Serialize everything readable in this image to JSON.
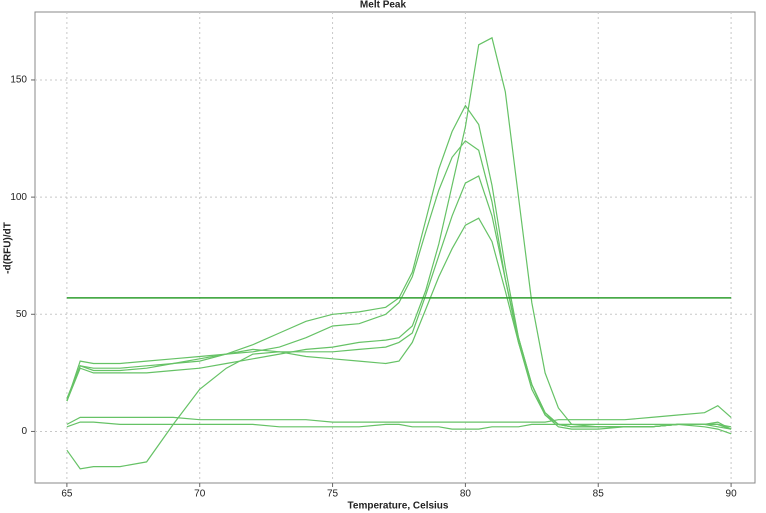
{
  "chart_data": {
    "type": "line",
    "title": "Melt Peak",
    "x_label": "Temperature, Celsius",
    "y_label": "-d(RFU)/dT",
    "x": [
      65,
      65.5,
      66,
      67,
      68,
      69,
      70,
      71,
      72,
      73,
      74,
      75,
      76,
      77,
      77.5,
      78,
      78.5,
      79,
      79.5,
      80,
      80.5,
      81,
      81.5,
      82,
      82.5,
      83,
      83.5,
      84,
      85,
      86,
      87,
      88,
      89,
      89.5,
      90
    ],
    "series": [
      {
        "color": "#66c266",
        "values": [
          13,
          27,
          25,
          25,
          25,
          26,
          27,
          29,
          31,
          33,
          35,
          36,
          38,
          39,
          40,
          45,
          60,
          80,
          105,
          130,
          165,
          168,
          145,
          100,
          55,
          25,
          10,
          3,
          2,
          2,
          2,
          3,
          3,
          2,
          1
        ]
      },
      {
        "color": "#66c266",
        "values": [
          14,
          28,
          26,
          26,
          27,
          29,
          31,
          33,
          37,
          42,
          47,
          50,
          51,
          53,
          57,
          68,
          90,
          112,
          128,
          139,
          131,
          105,
          70,
          40,
          20,
          8,
          3,
          2,
          2,
          2,
          2,
          3,
          3,
          3,
          2
        ]
      },
      {
        "color": "#66c266",
        "values": [
          13,
          30,
          29,
          29,
          30,
          31,
          32,
          33,
          34,
          36,
          40,
          45,
          46,
          50,
          55,
          66,
          85,
          103,
          117,
          124,
          120,
          98,
          65,
          38,
          18,
          7,
          3,
          2,
          2,
          2,
          2,
          3,
          3,
          3,
          1
        ]
      },
      {
        "color": "#66c266",
        "values": [
          -8,
          -16,
          -15,
          -15,
          -13,
          3,
          18,
          27,
          33,
          34,
          34,
          34,
          35,
          36,
          38,
          42,
          58,
          75,
          92,
          106,
          109,
          92,
          65,
          40,
          20,
          7,
          2,
          1,
          1,
          2,
          2,
          3,
          2,
          1,
          -1
        ]
      },
      {
        "color": "#66c266",
        "values": [
          13,
          28,
          27,
          27,
          28,
          29,
          30,
          33,
          35,
          34,
          32,
          31,
          30,
          29,
          30,
          38,
          52,
          66,
          78,
          88,
          91,
          81,
          60,
          38,
          20,
          8,
          3,
          2,
          2,
          2,
          2,
          3,
          3,
          3,
          1
        ]
      },
      {
        "color": "#66c266",
        "values": [
          3,
          6,
          6,
          6,
          6,
          6,
          5,
          5,
          5,
          5,
          5,
          4,
          4,
          4,
          4,
          4,
          4,
          4,
          4,
          4,
          4,
          4,
          4,
          4,
          4,
          4,
          5,
          5,
          5,
          5,
          6,
          7,
          8,
          11,
          6
        ]
      },
      {
        "color": "#66c266",
        "values": [
          2,
          4,
          4,
          3,
          3,
          3,
          3,
          3,
          3,
          2,
          2,
          2,
          2,
          3,
          3,
          2,
          2,
          2,
          1,
          1,
          1,
          2,
          2,
          2,
          3,
          3,
          3,
          3,
          3,
          3,
          3,
          3,
          3,
          4,
          1
        ]
      }
    ],
    "threshold": 57,
    "threshold_color": "#2e9e2e",
    "xlim": [
      63.8,
      90.9
    ],
    "ylim": [
      -22,
      179
    ],
    "xticks": [
      65,
      70,
      75,
      80,
      85,
      90
    ],
    "yticks": [
      0,
      50,
      100,
      150
    ],
    "grid": true
  }
}
